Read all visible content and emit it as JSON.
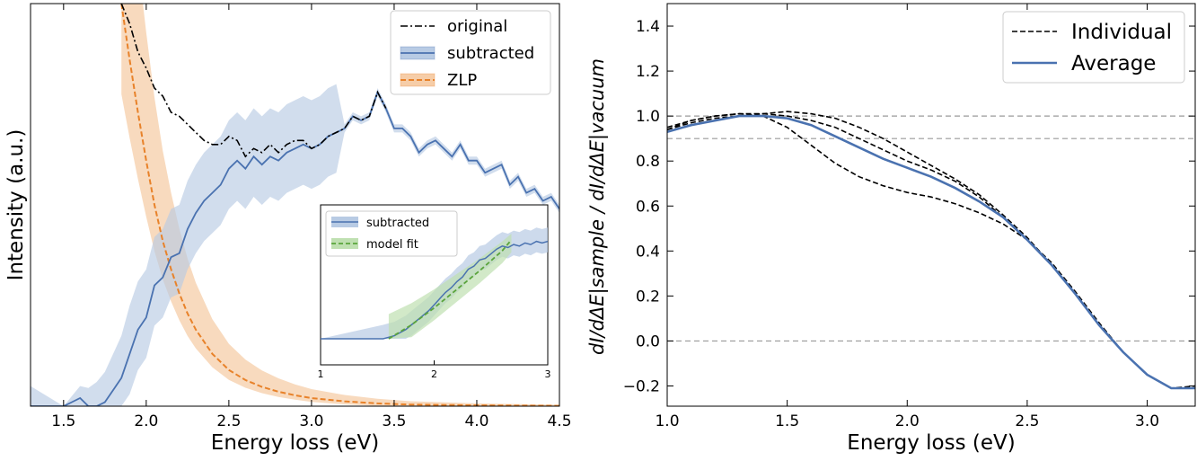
{
  "colors": {
    "blue": "#4a72b0",
    "blue_band": "#b8cbe4",
    "orange": "#e8822a",
    "orange_band": "#f6cda8",
    "green": "#5aa43c",
    "green_band": "#bfe0b1",
    "black": "#000000",
    "guide": "#9a9a9a"
  },
  "chart_data": [
    {
      "type": "line",
      "ylabel": "Intensity (a.u.)",
      "xlabel": "Energy loss (eV)",
      "xlim": [
        1.3,
        4.5
      ],
      "ylim": [
        0,
        1
      ],
      "y_ticks_shown": false,
      "x_ticks": [
        "1.5",
        "2.0",
        "2.5",
        "3.0",
        "3.5",
        "4.0",
        "4.5"
      ],
      "legend_position": "top-right",
      "legend": [
        "original",
        "subtracted",
        "ZLP"
      ],
      "series": [
        {
          "name": "original",
          "style": "dash-dot",
          "x": [
            1.85,
            1.9,
            1.95,
            2.0,
            2.05,
            2.1,
            2.15,
            2.2,
            2.25,
            2.3,
            2.35,
            2.4,
            2.45,
            2.5,
            2.55,
            2.6,
            2.65,
            2.7,
            2.75,
            2.8,
            2.85,
            2.9,
            2.95,
            3.0,
            3.05,
            3.1,
            3.15,
            3.2,
            3.25,
            3.3,
            3.35,
            3.4,
            3.45
          ],
          "y": [
            1.0,
            0.95,
            0.88,
            0.84,
            0.79,
            0.77,
            0.73,
            0.72,
            0.7,
            0.68,
            0.66,
            0.65,
            0.65,
            0.67,
            0.66,
            0.62,
            0.64,
            0.63,
            0.65,
            0.63,
            0.65,
            0.66,
            0.66,
            0.64,
            0.65,
            0.67,
            0.68,
            0.69,
            0.72,
            0.71,
            0.72,
            0.78,
            0.74
          ]
        },
        {
          "name": "subtracted",
          "x": [
            1.3,
            1.5,
            1.55,
            1.6,
            1.65,
            1.7,
            1.75,
            1.8,
            1.85,
            1.9,
            1.95,
            2.0,
            2.05,
            2.1,
            2.15,
            2.2,
            2.25,
            2.3,
            2.35,
            2.4,
            2.45,
            2.5,
            2.55,
            2.6,
            2.65,
            2.7,
            2.75,
            2.8,
            2.85,
            2.9,
            2.95,
            3.0,
            3.05,
            3.1,
            3.15,
            3.2,
            3.25,
            3.3,
            3.35,
            3.4,
            3.45,
            3.5,
            3.55,
            3.6,
            3.65,
            3.7,
            3.75,
            3.8,
            3.85,
            3.9,
            3.95,
            4.0,
            4.05,
            4.1,
            4.15,
            4.2,
            4.25,
            4.3,
            4.35,
            4.4,
            4.45,
            4.5
          ],
          "y": [
            0.0,
            0.0,
            0.01,
            0.02,
            0.0,
            0.0,
            0.01,
            0.04,
            0.07,
            0.13,
            0.19,
            0.22,
            0.3,
            0.32,
            0.37,
            0.38,
            0.44,
            0.48,
            0.51,
            0.53,
            0.55,
            0.59,
            0.61,
            0.59,
            0.62,
            0.6,
            0.62,
            0.61,
            0.63,
            0.64,
            0.65,
            0.64,
            0.65,
            0.67,
            0.68,
            0.69,
            0.72,
            0.71,
            0.72,
            0.78,
            0.74,
            0.69,
            0.69,
            0.67,
            0.63,
            0.65,
            0.66,
            0.64,
            0.62,
            0.65,
            0.61,
            0.61,
            0.58,
            0.59,
            0.6,
            0.55,
            0.57,
            0.53,
            0.54,
            0.51,
            0.52,
            0.49
          ]
        },
        {
          "name": "ZLP",
          "style": "dashed",
          "x": [
            1.85,
            1.9,
            1.95,
            2.0,
            2.05,
            2.1,
            2.15,
            2.2,
            2.25,
            2.3,
            2.35,
            2.4,
            2.5,
            2.6,
            2.7,
            2.8,
            2.9,
            3.0,
            3.2,
            3.4,
            3.6,
            4.0,
            4.5
          ],
          "y": [
            1.0,
            0.86,
            0.73,
            0.61,
            0.5,
            0.41,
            0.34,
            0.28,
            0.23,
            0.19,
            0.16,
            0.13,
            0.09,
            0.065,
            0.048,
            0.036,
            0.027,
            0.02,
            0.012,
            0.007,
            0.004,
            0.002,
            0.001
          ]
        }
      ],
      "inset": {
        "x_ticks": [
          "1",
          "2",
          "3"
        ],
        "xlim": [
          1,
          3
        ],
        "legend": [
          "subtracted",
          "model fit"
        ],
        "series": [
          {
            "name": "subtracted",
            "x": [
              1.0,
              1.55,
              1.6,
              1.65,
              1.7,
              1.75,
              1.8,
              1.85,
              1.9,
              1.95,
              2.0,
              2.05,
              2.1,
              2.15,
              2.2,
              2.25,
              2.3,
              2.35,
              2.4,
              2.45,
              2.5,
              2.55,
              2.6,
              2.65,
              2.7,
              2.75,
              2.8,
              2.85,
              2.9,
              2.95,
              3.0
            ],
            "y": [
              0.0,
              0.0,
              0.01,
              0.02,
              0.04,
              0.06,
              0.09,
              0.12,
              0.15,
              0.18,
              0.22,
              0.26,
              0.3,
              0.33,
              0.37,
              0.4,
              0.45,
              0.47,
              0.51,
              0.52,
              0.55,
              0.58,
              0.6,
              0.59,
              0.61,
              0.6,
              0.62,
              0.61,
              0.63,
              0.62,
              0.63
            ]
          },
          {
            "name": "model fit",
            "style": "dashed",
            "x": [
              1.6,
              1.8,
              2.0,
              2.2,
              2.4,
              2.6,
              2.68
            ],
            "y": [
              0.0,
              0.09,
              0.2,
              0.32,
              0.44,
              0.57,
              0.64
            ]
          }
        ]
      }
    },
    {
      "type": "line",
      "ylabel": "dI/dΔE|sample / dI/dΔE|vacuum",
      "xlabel": "Energy loss (eV)",
      "xlim": [
        1.0,
        3.2
      ],
      "ylim": [
        -0.29,
        1.5
      ],
      "x_ticks": [
        "1.0",
        "1.5",
        "2.0",
        "2.5",
        "3.0"
      ],
      "y_ticks": [
        "−0.2",
        "0.0",
        "0.2",
        "0.4",
        "0.6",
        "0.8",
        "1.0",
        "1.2",
        "1.4"
      ],
      "reference_lines": [
        1.0,
        0.9,
        0.0
      ],
      "legend_position": "top-right",
      "legend": [
        "Individual",
        "Average"
      ],
      "series": [
        {
          "name": "Individual",
          "style": "dashed",
          "x": [
            1.0,
            1.1,
            1.2,
            1.3,
            1.4,
            1.5,
            1.6,
            1.7,
            1.8,
            1.9,
            2.0,
            2.1,
            2.2,
            2.3,
            2.4,
            2.5,
            2.6,
            2.7,
            2.8,
            2.9,
            3.0,
            3.1,
            3.2
          ],
          "y": [
            0.95,
            0.98,
            1.0,
            1.01,
            1.0,
            0.95,
            0.87,
            0.79,
            0.73,
            0.69,
            0.66,
            0.64,
            0.61,
            0.57,
            0.52,
            0.45,
            0.35,
            0.22,
            0.08,
            -0.05,
            -0.15,
            -0.21,
            -0.2
          ]
        },
        {
          "name": "Individual",
          "style": "dashed",
          "x": [
            1.0,
            1.1,
            1.2,
            1.3,
            1.4,
            1.5,
            1.6,
            1.7,
            1.8,
            1.9,
            2.0,
            2.1,
            2.2,
            2.3,
            2.4,
            2.5,
            2.6,
            2.7,
            2.8,
            2.9,
            3.0,
            3.1,
            3.2
          ],
          "y": [
            0.94,
            0.97,
            0.99,
            1.0,
            1.01,
            1.0,
            0.98,
            0.95,
            0.9,
            0.85,
            0.8,
            0.76,
            0.71,
            0.64,
            0.55,
            0.45,
            0.34,
            0.21,
            0.07,
            -0.05,
            -0.15,
            -0.21,
            -0.21
          ]
        },
        {
          "name": "Individual",
          "style": "dashed",
          "x": [
            1.0,
            1.1,
            1.2,
            1.3,
            1.4,
            1.5,
            1.6,
            1.7,
            1.8,
            1.9,
            2.0,
            2.1,
            2.2,
            2.3,
            2.4,
            2.5,
            2.6,
            2.7,
            2.8,
            2.9,
            3.0,
            3.1,
            3.2
          ],
          "y": [
            0.94,
            0.98,
            1.0,
            1.01,
            1.01,
            1.02,
            1.01,
            0.99,
            0.95,
            0.9,
            0.84,
            0.78,
            0.72,
            0.65,
            0.56,
            0.46,
            0.34,
            0.21,
            0.07,
            -0.05,
            -0.15,
            -0.21,
            -0.21
          ]
        },
        {
          "name": "Average",
          "x": [
            1.0,
            1.1,
            1.2,
            1.3,
            1.4,
            1.5,
            1.6,
            1.7,
            1.8,
            1.9,
            2.0,
            2.1,
            2.2,
            2.3,
            2.4,
            2.5,
            2.6,
            2.7,
            2.8,
            2.9,
            3.0,
            3.1,
            3.2
          ],
          "y": [
            0.93,
            0.96,
            0.98,
            1.0,
            1.0,
            0.99,
            0.96,
            0.91,
            0.86,
            0.81,
            0.77,
            0.73,
            0.68,
            0.62,
            0.55,
            0.45,
            0.34,
            0.21,
            0.07,
            -0.05,
            -0.15,
            -0.21,
            -0.21
          ]
        }
      ]
    }
  ]
}
